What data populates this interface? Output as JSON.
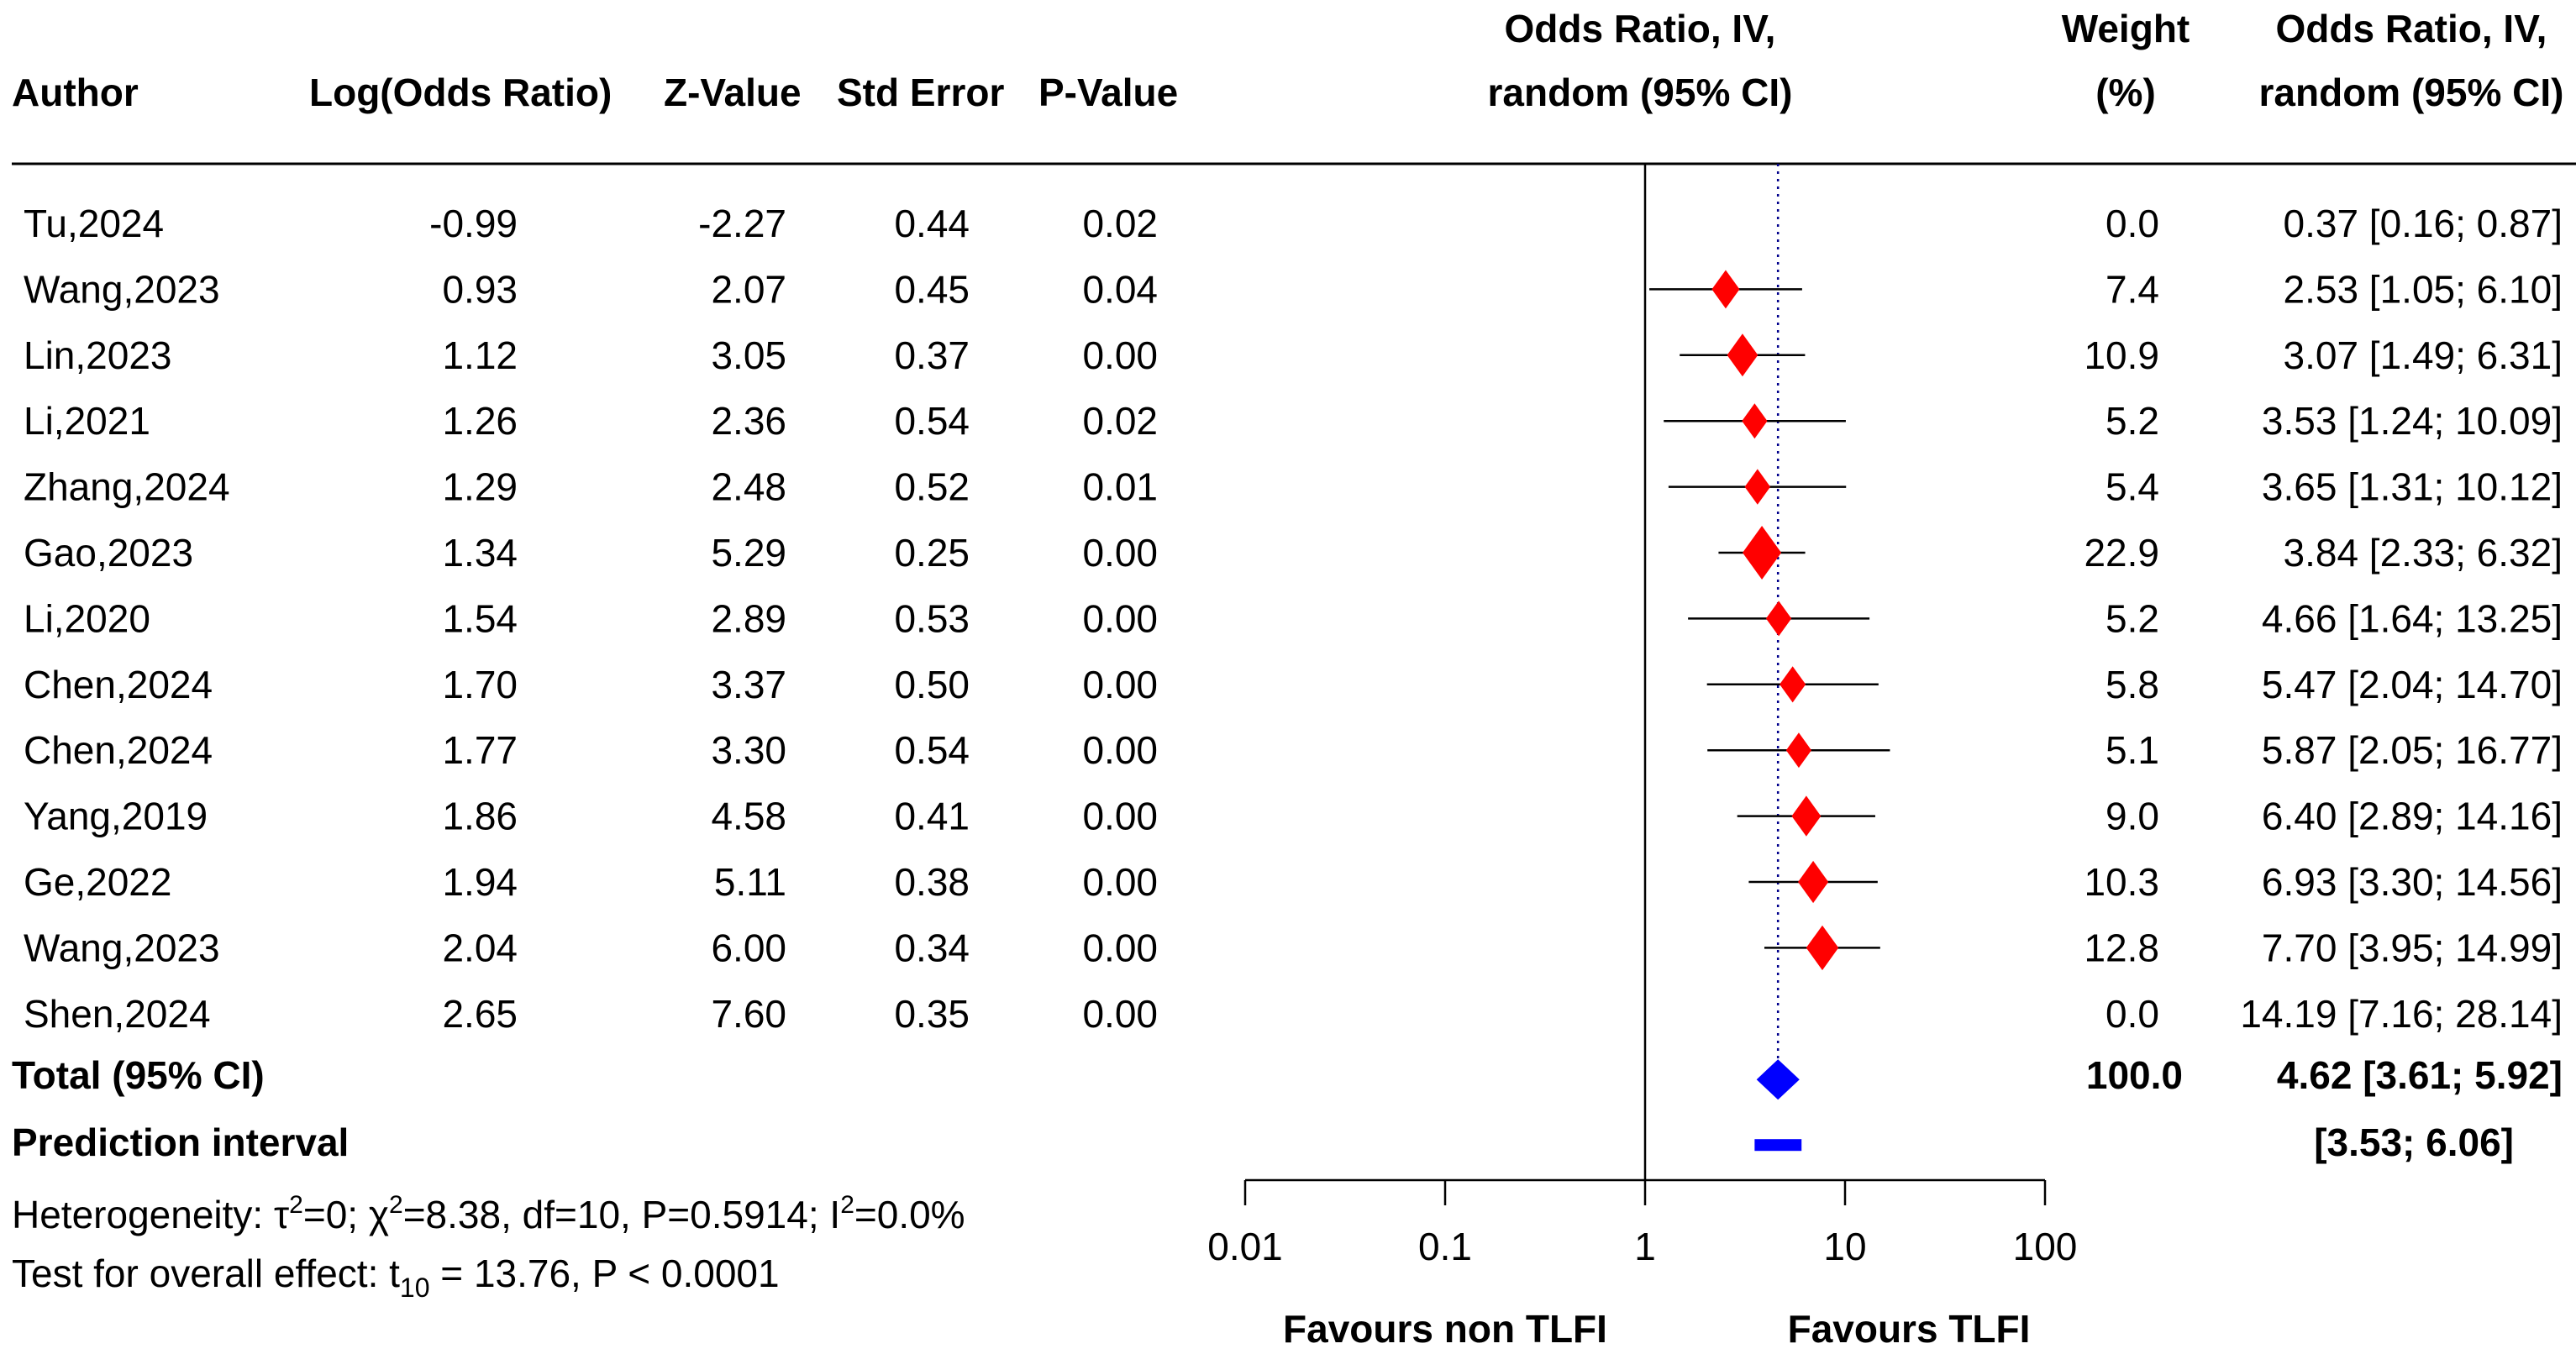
{
  "chart_data": {
    "type": "forest",
    "headers": {
      "author": "Author",
      "log_or": "Log(Odds Ratio)",
      "z": "Z-Value",
      "se": "Std Error",
      "p": "P-Value",
      "plot_line1": "Odds Ratio, IV,",
      "plot_line2": "random (95% CI)",
      "weight_line1": "Weight",
      "weight_line2": "(%)",
      "ci_line1": "Odds Ratio, IV,",
      "ci_line2": "random (95% CI)"
    },
    "studies": [
      {
        "author": "Tu,2024",
        "log_or": "-0.99",
        "z": "-2.27",
        "se": "0.44",
        "p": "0.02",
        "weight": "0.0",
        "ci_text": "0.37 [0.16;  0.87]",
        "or": 0.37,
        "lower": 0.16,
        "upper": 0.87,
        "plotted": false
      },
      {
        "author": "Wang,2023",
        "log_or": "0.93",
        "z": "2.07",
        "se": "0.45",
        "p": "0.04",
        "weight": "7.4",
        "ci_text": "2.53 [1.05;  6.10]",
        "or": 2.53,
        "lower": 1.05,
        "upper": 6.1,
        "plotted": true
      },
      {
        "author": "Lin,2023",
        "log_or": "1.12",
        "z": "3.05",
        "se": "0.37",
        "p": "0.00",
        "weight": "10.9",
        "ci_text": "3.07 [1.49;  6.31]",
        "or": 3.07,
        "lower": 1.49,
        "upper": 6.31,
        "plotted": true
      },
      {
        "author": "Li,2021",
        "log_or": "1.26",
        "z": "2.36",
        "se": "0.54",
        "p": "0.02",
        "weight": "5.2",
        "ci_text": "3.53 [1.24; 10.09]",
        "or": 3.53,
        "lower": 1.24,
        "upper": 10.09,
        "plotted": true
      },
      {
        "author": "Zhang,2024",
        "log_or": "1.29",
        "z": "2.48",
        "se": "0.52",
        "p": "0.01",
        "weight": "5.4",
        "ci_text": "3.65 [1.31; 10.12]",
        "or": 3.65,
        "lower": 1.31,
        "upper": 10.12,
        "plotted": true
      },
      {
        "author": "Gao,2023",
        "log_or": "1.34",
        "z": "5.29",
        "se": "0.25",
        "p": "0.00",
        "weight": "22.9",
        "ci_text": "3.84 [2.33;  6.32]",
        "or": 3.84,
        "lower": 2.33,
        "upper": 6.32,
        "plotted": true
      },
      {
        "author": "Li,2020",
        "log_or": "1.54",
        "z": "2.89",
        "se": "0.53",
        "p": "0.00",
        "weight": "5.2",
        "ci_text": "4.66 [1.64; 13.25]",
        "or": 4.66,
        "lower": 1.64,
        "upper": 13.25,
        "plotted": true
      },
      {
        "author": "Chen,2024",
        "log_or": "1.70",
        "z": "3.37",
        "se": "0.50",
        "p": "0.00",
        "weight": "5.8",
        "ci_text": "5.47 [2.04; 14.70]",
        "or": 5.47,
        "lower": 2.04,
        "upper": 14.7,
        "plotted": true
      },
      {
        "author": "Chen,2024",
        "log_or": "1.77",
        "z": "3.30",
        "se": "0.54",
        "p": "0.00",
        "weight": "5.1",
        "ci_text": "5.87 [2.05; 16.77]",
        "or": 5.87,
        "lower": 2.05,
        "upper": 16.77,
        "plotted": true
      },
      {
        "author": "Yang,2019",
        "log_or": "1.86",
        "z": "4.58",
        "se": "0.41",
        "p": "0.00",
        "weight": "9.0",
        "ci_text": "6.40 [2.89; 14.16]",
        "or": 6.4,
        "lower": 2.89,
        "upper": 14.16,
        "plotted": true
      },
      {
        "author": "Ge,2022",
        "log_or": "1.94",
        "z": "5.11",
        "se": "0.38",
        "p": "0.00",
        "weight": "10.3",
        "ci_text": "6.93 [3.30; 14.56]",
        "or": 6.93,
        "lower": 3.3,
        "upper": 14.56,
        "plotted": true
      },
      {
        "author": "Wang,2023",
        "log_or": "2.04",
        "z": "6.00",
        "se": "0.34",
        "p": "0.00",
        "weight": "12.8",
        "ci_text": "7.70 [3.95; 14.99]",
        "or": 7.7,
        "lower": 3.95,
        "upper": 14.99,
        "plotted": true
      },
      {
        "author": "Shen,2024",
        "log_or": "2.65",
        "z": "7.60",
        "se": "0.35",
        "p": "0.00",
        "weight": "0.0",
        "ci_text": "14.19 [7.16; 28.14]",
        "or": 14.19,
        "lower": 7.16,
        "upper": 28.14,
        "plotted": false
      }
    ],
    "total": {
      "label": "Total (95% CI)",
      "weight": "100.0",
      "ci_text": "4.62 [3.61;  5.92]",
      "or": 4.62,
      "lower": 3.61,
      "upper": 5.92
    },
    "prediction": {
      "label": "Prediction interval",
      "ci_text": "[3.53;  6.06]",
      "lower": 3.53,
      "upper": 6.06
    },
    "heterogeneity": {
      "prefix": "Heterogeneity: ",
      "tau": "τ",
      "tau_value": "=0; ",
      "chi": "χ",
      "chi_value": "=8.38, df=10, P=0.5914; ",
      "i": "I",
      "i_value": "=0.0%",
      "sup": "2"
    },
    "overall_effect": {
      "prefix": "Test for overall effect: t",
      "sub": "10",
      "rest": " = 13.76, P < 0.0001"
    },
    "axis": {
      "scale": "log",
      "ticks": [
        0.01,
        0.1,
        1,
        10,
        100
      ],
      "tick_labels": [
        "0.01",
        "0.1",
        "1",
        "10",
        "100"
      ],
      "xlim": [
        0.01,
        100
      ],
      "null_line": 1
    },
    "favours_left": "Favours non TLFI",
    "favours_right": "Favours TLFI",
    "colors": {
      "study_marker": "#ff0000",
      "summary_marker": "#0000ff",
      "reference_line": "#00008b",
      "lines": "#000000"
    }
  }
}
